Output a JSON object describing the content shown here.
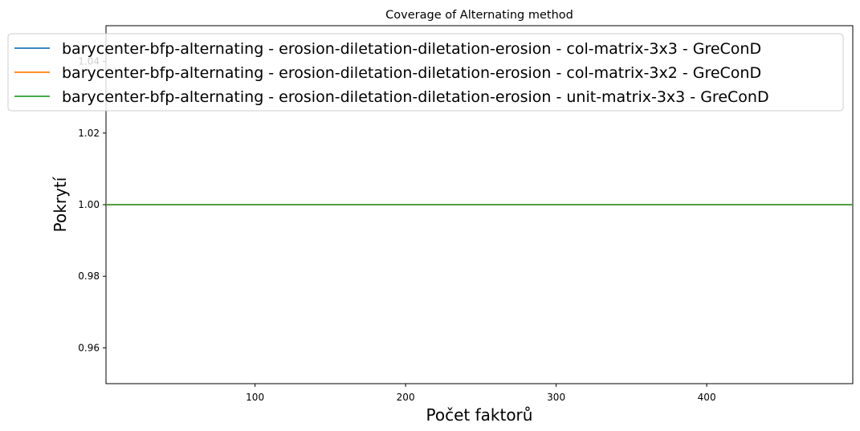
{
  "chart_data": {
    "type": "line",
    "title": "Coverage of Alternating method",
    "xlabel": "Počet faktorů",
    "ylabel": "Pokrytí",
    "xlim": [
      1,
      497
    ],
    "ylim": [
      0.95,
      1.05
    ],
    "xticks": [
      100,
      200,
      300,
      400
    ],
    "yticks": [
      0.96,
      0.98,
      1.0,
      1.02,
      1.04
    ],
    "ytick_labels": [
      "0.96",
      "0.98",
      "1.00",
      "1.02",
      "1.04"
    ],
    "grid": false,
    "legend_position": "top",
    "series": [
      {
        "name": "barycenter-bfp-alternating - erosion-diletation-diletation-erosion - col-matrix-3x3 - GreConD",
        "color": "#1f77b4",
        "x": [
          1,
          497
        ],
        "y": [
          1.0,
          1.0
        ]
      },
      {
        "name": "barycenter-bfp-alternating - erosion-diletation-diletation-erosion - col-matrix-3x2 - GreConD",
        "color": "#ff7f0e",
        "x": [
          1,
          497
        ],
        "y": [
          1.0,
          1.0
        ]
      },
      {
        "name": "barycenter-bfp-alternating - erosion-diletation-diletation-erosion - unit-matrix-3x3 - GreConD",
        "color": "#2ca02c",
        "x": [
          1,
          497
        ],
        "y": [
          1.0,
          1.0
        ]
      }
    ]
  }
}
